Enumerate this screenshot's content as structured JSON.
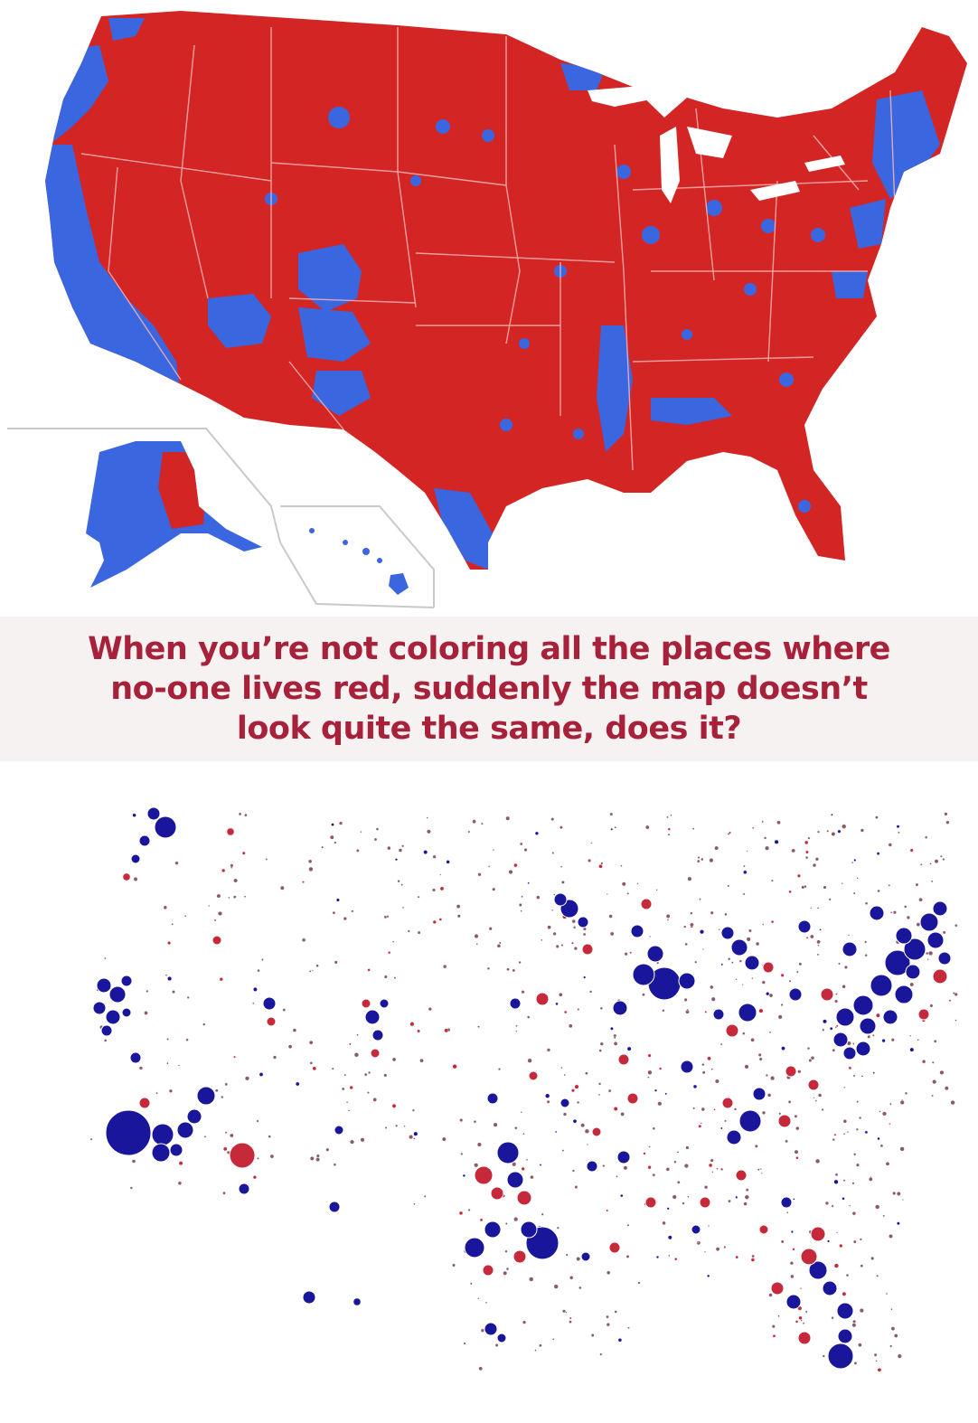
{
  "caption": {
    "lines": [
      "When you’re not coloring all the places where",
      "no-one lives red, suddenly the map doesn’t",
      "look quite the same, does it?"
    ]
  },
  "colors": {
    "republican": "#d42525",
    "democrat": "#3a66e0",
    "bubble_dem": "#1a169c",
    "bubble_rep": "#c62a3a",
    "border": "#f5b5b5",
    "caption_text": "#a8213a"
  },
  "maps": {
    "top": {
      "type": "county-choropleth",
      "legend": "none"
    },
    "bottom": {
      "type": "proportional-bubbles",
      "legend": "none"
    }
  }
}
